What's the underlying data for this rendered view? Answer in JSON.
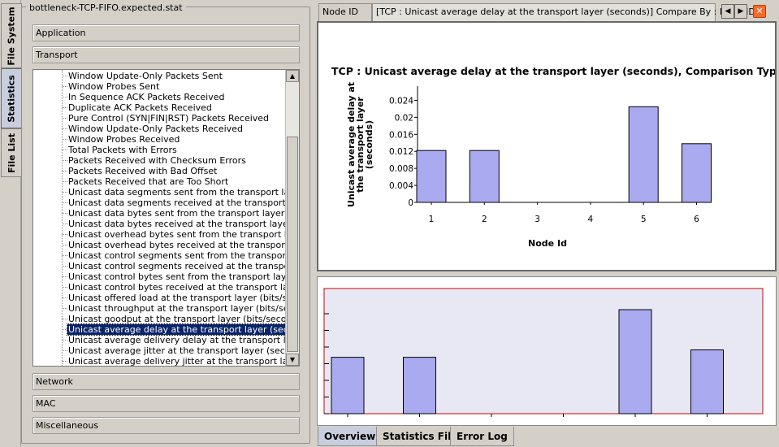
{
  "left_tabs": [
    "File System",
    "Statistics",
    "File List"
  ],
  "active_left_tab": "Statistics",
  "file_group_title": "bottleneck-TCP-FIFO.expected.stat",
  "categories_top": [
    "Application",
    "Transport"
  ],
  "categories_bottom": [
    "Network",
    "MAC",
    "Miscellaneous"
  ],
  "tree_items": [
    "Window Update-Only Packets Sent",
    "Window Probes Sent",
    "In Sequence ACK Packets Received",
    "Duplicate ACK Packets Received",
    "Pure Control (SYN|FIN|RST) Packets Received",
    "Window Update-Only Packets Received",
    "Window Probes Received",
    "Total Packets with Errors",
    "Packets Received with Checksum Errors",
    "Packets Received with Bad Offset",
    "Packets Received that are Too Short",
    "Unicast data segments sent from the transport layer...",
    "Unicast data segments received at the transport lay...",
    "Unicast data bytes sent from the transport layer (by...",
    "Unicast data bytes received at the transport layer (...",
    "Unicast overhead bytes sent from the transport laye...",
    "Unicast overhead bytes received at the transport la...",
    "Unicast control segments sent from the transport laye...",
    "Unicast control segments received at the transport l...",
    "Unicast control bytes sent from the transport layer (...",
    "Unicast control bytes received at the transport layer...",
    "Unicast offered load at the transport layer (bits/sec...",
    "Unicast throughput at the transport layer (bits/seco...",
    "Unicast goodput at the transport layer (bits/second)",
    "Unicast average delay at the transport layer (secon...",
    "Unicast average delivery delay at the transport laye...",
    "Unicast average jitter at the transport layer (seconds)",
    "Unicast average delivery jitter at the transport layer..."
  ],
  "selected_tree_item": "Unicast average delay at the transport layer (secon...",
  "top_tabs": {
    "tab1": "Node ID",
    "tab2": "[TCP :  Unicast average delay at the transport layer (seconds)] Compare By : Node ID"
  },
  "nav_icons": [
    "left-arrow-icon",
    "right-arrow-icon",
    "close-icon"
  ],
  "bottom_tabs": [
    "Overview",
    "Statistics File",
    "Error Log"
  ],
  "active_bottom_tab": "Overview",
  "colors": {
    "bar_fill": "#aaaaf0",
    "bar_stroke": "#000000",
    "overview_border": "#cc0000",
    "overview_bg": "#e8e8f4",
    "selection": "#0a246a"
  },
  "chart_data": {
    "type": "bar",
    "title": "TCP :  Unicast average delay at the transport layer (seconds), Comparison Type: Node",
    "xlabel": "Node Id",
    "ylabel": "Unicast average delay at the transport layer (seconds)",
    "categories": [
      "1",
      "2",
      "3",
      "4",
      "5",
      "6"
    ],
    "values": [
      0.0122,
      0.0122,
      0,
      0,
      0.0225,
      0.0138
    ],
    "yticks": [
      "0",
      "0.004",
      "0.008",
      "0.012",
      "0.016",
      "0.02",
      "0.024"
    ],
    "ylim": [
      0,
      0.026
    ],
    "grid": false,
    "legend": "none"
  }
}
